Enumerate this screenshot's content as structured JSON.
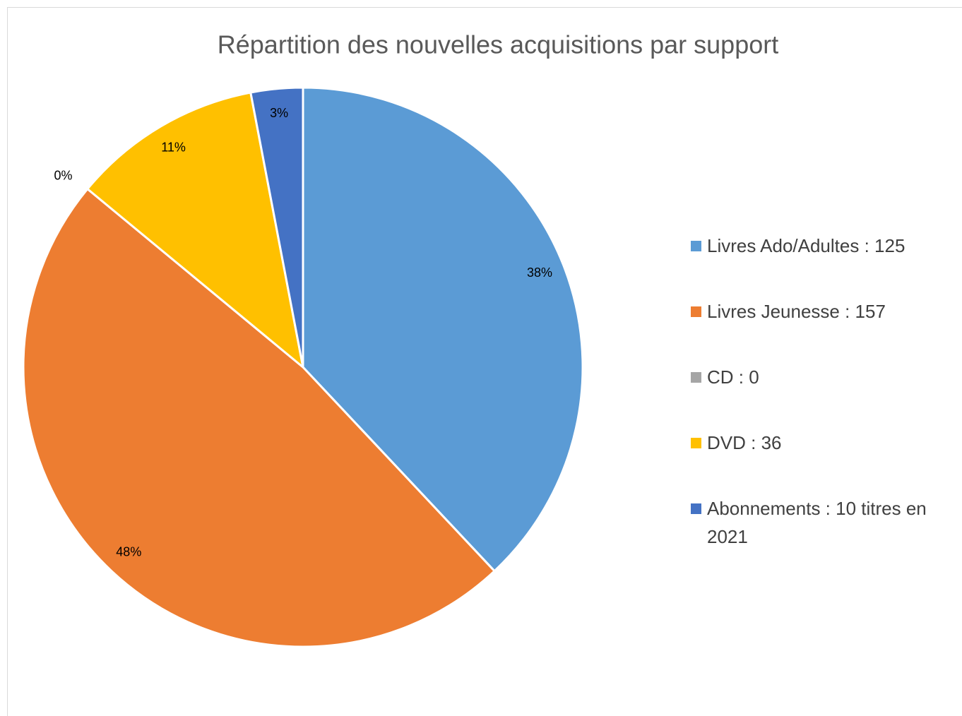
{
  "chart_data": {
    "type": "pie",
    "title": "Répartition des nouvelles acquisitions par support",
    "categories": [
      "Livres Ado/Adultes : 125",
      "Livres Jeunesse : 157",
      "CD : 0",
      "DVD : 36",
      "Abonnements : 10 titres en 2021"
    ],
    "values": [
      38,
      48,
      0,
      11,
      3
    ],
    "value_labels": [
      "38%",
      "48%",
      "0%",
      "11%",
      "3%"
    ],
    "colors": [
      "#5b9bd5",
      "#ed7d31",
      "#a5a5a5",
      "#ffc000",
      "#4472c4"
    ],
    "legend": "right"
  }
}
